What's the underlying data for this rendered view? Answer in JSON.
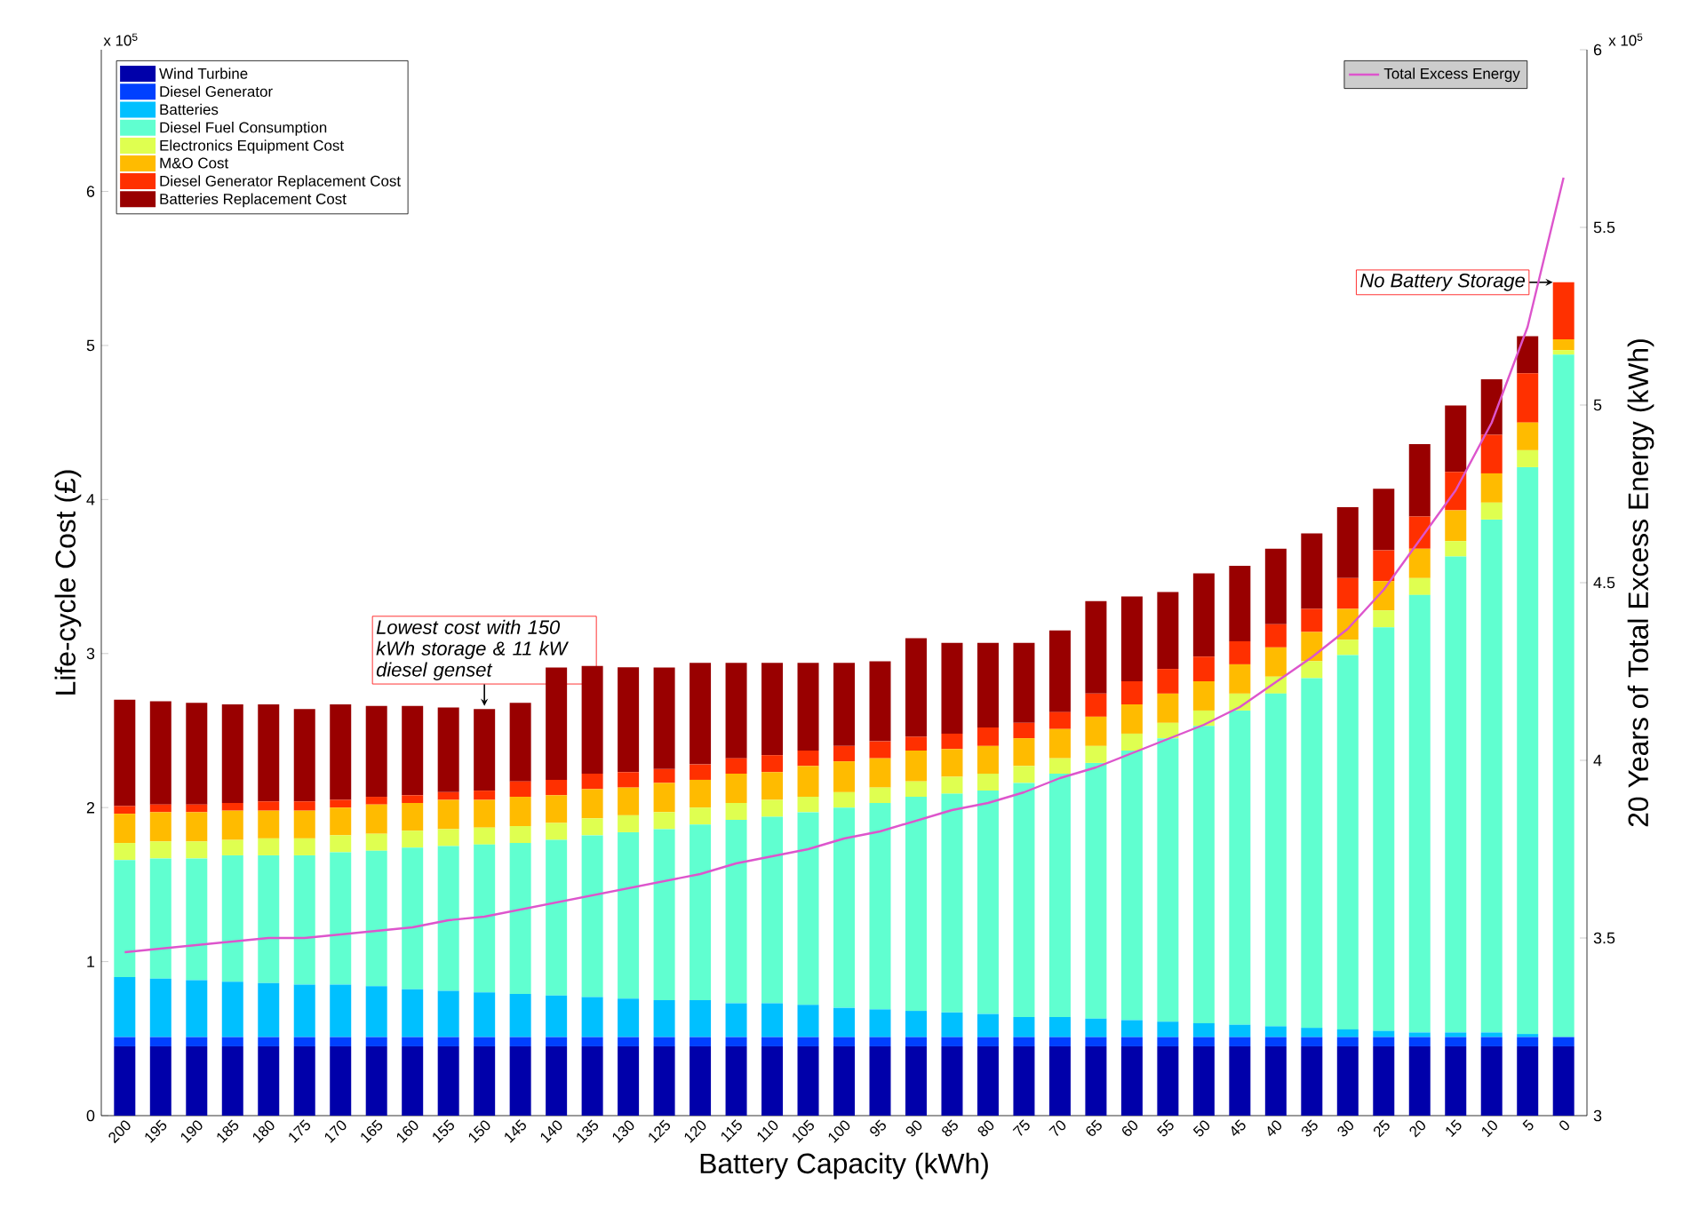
{
  "chart_data": {
    "type": "bar",
    "stacked": true,
    "legend": "top left",
    "xlabel": "Battery Capacity (kWh)",
    "ylabel": "Life-cycle Cost (£)",
    "y2label": "20 Years of Total Excess Energy (kWh)",
    "categories": [
      "200",
      "195",
      "190",
      "185",
      "180",
      "175",
      "170",
      "165",
      "160",
      "155",
      "150",
      "145",
      "140",
      "135",
      "130",
      "125",
      "120",
      "115",
      "110",
      "105",
      "100",
      "95",
      "90",
      "85",
      "80",
      "75",
      "70",
      "65",
      "60",
      "55",
      "50",
      "45",
      "40",
      "35",
      "30",
      "25",
      "20",
      "15",
      "10",
      "5",
      "0"
    ],
    "ylim": [
      0,
      6.92
    ],
    "yticks": [
      0,
      1,
      2,
      3,
      4,
      5,
      6
    ],
    "y2lim": [
      3,
      6
    ],
    "y2ticks": [
      3,
      3.5,
      4,
      4.5,
      5,
      5.5,
      6
    ],
    "series": [
      {
        "name": "Wind Turbine",
        "color": "#0000aa",
        "values": [
          0.45,
          0.45,
          0.45,
          0.45,
          0.45,
          0.45,
          0.45,
          0.45,
          0.45,
          0.45,
          0.45,
          0.45,
          0.45,
          0.45,
          0.45,
          0.45,
          0.45,
          0.45,
          0.45,
          0.45,
          0.45,
          0.45,
          0.45,
          0.45,
          0.45,
          0.45,
          0.45,
          0.45,
          0.45,
          0.45,
          0.45,
          0.45,
          0.45,
          0.45,
          0.45,
          0.45,
          0.45,
          0.45,
          0.45,
          0.45,
          0.45
        ]
      },
      {
        "name": "Diesel Generator",
        "color": "#0040ff",
        "values": [
          0.06,
          0.06,
          0.06,
          0.06,
          0.06,
          0.06,
          0.06,
          0.06,
          0.06,
          0.06,
          0.06,
          0.06,
          0.06,
          0.06,
          0.06,
          0.06,
          0.06,
          0.06,
          0.06,
          0.06,
          0.06,
          0.06,
          0.06,
          0.06,
          0.06,
          0.06,
          0.06,
          0.06,
          0.06,
          0.06,
          0.06,
          0.06,
          0.06,
          0.06,
          0.06,
          0.06,
          0.06,
          0.06,
          0.06,
          0.06,
          0.06
        ]
      },
      {
        "name": "Batteries",
        "color": "#00c0ff",
        "values": [
          0.39,
          0.38,
          0.37,
          0.36,
          0.35,
          0.34,
          0.34,
          0.33,
          0.31,
          0.3,
          0.29,
          0.28,
          0.27,
          0.26,
          0.25,
          0.24,
          0.24,
          0.22,
          0.22,
          0.21,
          0.19,
          0.18,
          0.17,
          0.16,
          0.15,
          0.13,
          0.13,
          0.12,
          0.11,
          0.1,
          0.09,
          0.08,
          0.07,
          0.06,
          0.05,
          0.04,
          0.03,
          0.03,
          0.03,
          0.02,
          0
        ]
      },
      {
        "name": "Diesel Fuel Consumption",
        "color": "#60ffd0",
        "values": [
          0.76,
          0.78,
          0.79,
          0.82,
          0.83,
          0.84,
          0.86,
          0.88,
          0.92,
          0.94,
          0.96,
          0.98,
          1.01,
          1.05,
          1.08,
          1.11,
          1.14,
          1.19,
          1.21,
          1.25,
          1.3,
          1.34,
          1.39,
          1.42,
          1.45,
          1.52,
          1.58,
          1.66,
          1.75,
          1.84,
          1.93,
          2.04,
          2.16,
          2.27,
          2.43,
          2.62,
          2.84,
          3.09,
          3.33,
          3.68,
          4.43
        ]
      },
      {
        "name": "Electronics Equipment Cost",
        "color": "#dfff50",
        "values": [
          0.11,
          0.11,
          0.11,
          0.1,
          0.11,
          0.11,
          0.11,
          0.11,
          0.11,
          0.11,
          0.11,
          0.11,
          0.11,
          0.11,
          0.11,
          0.11,
          0.11,
          0.11,
          0.11,
          0.1,
          0.1,
          0.1,
          0.1,
          0.11,
          0.11,
          0.11,
          0.1,
          0.11,
          0.11,
          0.1,
          0.1,
          0.11,
          0.11,
          0.11,
          0.1,
          0.11,
          0.11,
          0.1,
          0.11,
          0.11,
          0.03
        ]
      },
      {
        "name": "M&O Cost",
        "color": "#ffbb00",
        "values": [
          0.19,
          0.19,
          0.19,
          0.19,
          0.18,
          0.18,
          0.18,
          0.19,
          0.18,
          0.19,
          0.18,
          0.19,
          0.18,
          0.19,
          0.18,
          0.19,
          0.18,
          0.19,
          0.18,
          0.2,
          0.2,
          0.19,
          0.2,
          0.18,
          0.18,
          0.18,
          0.19,
          0.19,
          0.19,
          0.19,
          0.19,
          0.19,
          0.19,
          0.19,
          0.2,
          0.19,
          0.19,
          0.2,
          0.19,
          0.18,
          0.07
        ]
      },
      {
        "name": "Diesel Generator Replacement Cost",
        "color": "#ff3000",
        "values": [
          0.05,
          0.05,
          0.05,
          0.05,
          0.06,
          0.06,
          0.05,
          0.05,
          0.05,
          0.05,
          0.06,
          0.1,
          0.1,
          0.1,
          0.1,
          0.09,
          0.1,
          0.1,
          0.11,
          0.1,
          0.1,
          0.11,
          0.09,
          0.1,
          0.12,
          0.1,
          0.11,
          0.15,
          0.15,
          0.16,
          0.16,
          0.15,
          0.15,
          0.15,
          0.2,
          0.2,
          0.21,
          0.25,
          0.25,
          0.32,
          0.37
        ]
      },
      {
        "name": "Batteries Replacement Cost",
        "color": "#990000",
        "values": [
          0.69,
          0.67,
          0.66,
          0.64,
          0.63,
          0.6,
          0.62,
          0.59,
          0.58,
          0.55,
          0.53,
          0.51,
          0.73,
          0.7,
          0.68,
          0.66,
          0.66,
          0.62,
          0.6,
          0.57,
          0.54,
          0.52,
          0.64,
          0.59,
          0.55,
          0.52,
          0.53,
          0.6,
          0.55,
          0.5,
          0.54,
          0.49,
          0.49,
          0.49,
          0.46,
          0.4,
          0.47,
          0.43,
          0.36,
          0.24,
          0
        ]
      },
      {
        "name": "Total Excess Energy",
        "type": "line",
        "axis": "y2",
        "color": "#dd55cc",
        "values": [
          3.46,
          3.47,
          3.48,
          3.49,
          3.5,
          3.5,
          3.51,
          3.52,
          3.53,
          3.55,
          3.56,
          3.58,
          3.6,
          3.62,
          3.64,
          3.66,
          3.68,
          3.71,
          3.73,
          3.75,
          3.78,
          3.8,
          3.83,
          3.86,
          3.88,
          3.91,
          3.95,
          3.98,
          4.02,
          4.06,
          4.1,
          4.15,
          4.22,
          4.29,
          4.37,
          4.48,
          4.62,
          4.76,
          4.95,
          5.22,
          5.64
        ]
      }
    ],
    "annotations": [
      "x 10$^{5}$",
      "x 10$^{5}$",
      {
        "text": "Lowest cost with 150 kWh storage & 11 kW diesel genset",
        "x": "150",
        "y": 2.64
      },
      {
        "text": "No Battery Storage",
        "x": "0",
        "y": 5.41
      }
    ]
  }
}
